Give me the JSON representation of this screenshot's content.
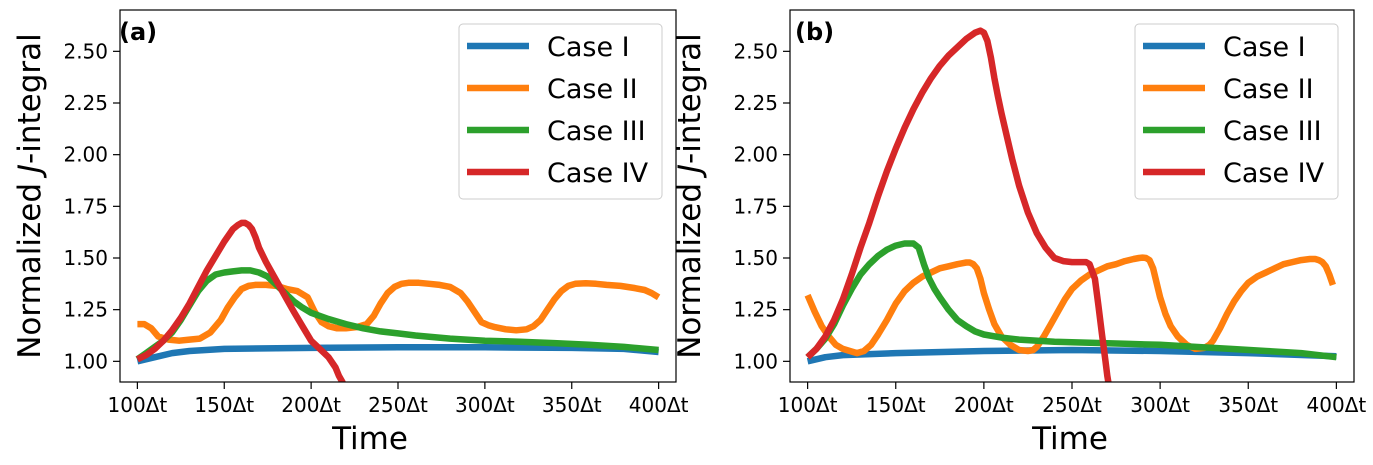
{
  "chart_data": [
    {
      "type": "line",
      "panel_label": "(a)",
      "xlabel": "Time",
      "ylabel_prefix": "Normalized ",
      "ylabel_symbol": "J",
      "ylabel_suffix": "-integral",
      "xlim": [
        90,
        410
      ],
      "ylim": [
        0.9,
        2.7
      ],
      "x_ticks": [
        100,
        150,
        200,
        250,
        300,
        350,
        400
      ],
      "x_tick_labels": [
        "100Δt",
        "150Δt",
        "200Δt",
        "250Δt",
        "300Δt",
        "350Δt",
        "400Δt"
      ],
      "y_ticks": [
        1.0,
        1.25,
        1.5,
        1.75,
        2.0,
        2.25,
        2.5
      ],
      "y_tick_labels": [
        "1.00",
        "1.25",
        "1.50",
        "1.75",
        "2.00",
        "2.25",
        "2.50"
      ],
      "legend_position": "top-right",
      "series": [
        {
          "name": "Case I",
          "color": "#1f77b4",
          "x": [
            100,
            110,
            120,
            130,
            150,
            200,
            250,
            300,
            350,
            380,
            400
          ],
          "y": [
            1.0,
            1.02,
            1.04,
            1.05,
            1.06,
            1.065,
            1.068,
            1.068,
            1.065,
            1.06,
            1.045
          ]
        },
        {
          "name": "Case II",
          "color": "#ff7f0e",
          "x": [
            100,
            104,
            108,
            112,
            118,
            124,
            130,
            136,
            142,
            148,
            152,
            156,
            160,
            164,
            168,
            174,
            180,
            186,
            192,
            198,
            202,
            206,
            210,
            215,
            220,
            226,
            232,
            236,
            240,
            244,
            248,
            252,
            256,
            262,
            268,
            274,
            280,
            286,
            290,
            294,
            298,
            302,
            306,
            312,
            318,
            324,
            328,
            332,
            336,
            340,
            344,
            348,
            352,
            358,
            364,
            370,
            378,
            386,
            392,
            396,
            400
          ],
          "y": [
            1.18,
            1.18,
            1.16,
            1.12,
            1.105,
            1.1,
            1.105,
            1.11,
            1.14,
            1.2,
            1.26,
            1.31,
            1.35,
            1.365,
            1.37,
            1.37,
            1.365,
            1.35,
            1.34,
            1.31,
            1.24,
            1.19,
            1.17,
            1.16,
            1.16,
            1.165,
            1.18,
            1.22,
            1.28,
            1.33,
            1.36,
            1.375,
            1.38,
            1.38,
            1.375,
            1.37,
            1.36,
            1.33,
            1.29,
            1.24,
            1.19,
            1.175,
            1.165,
            1.155,
            1.15,
            1.155,
            1.17,
            1.2,
            1.25,
            1.3,
            1.34,
            1.365,
            1.375,
            1.378,
            1.375,
            1.37,
            1.365,
            1.355,
            1.345,
            1.33,
            1.31
          ]
        },
        {
          "name": "Case III",
          "color": "#2ca02c",
          "x": [
            100,
            105,
            110,
            115,
            120,
            125,
            130,
            135,
            140,
            145,
            150,
            155,
            160,
            165,
            170,
            175,
            180,
            185,
            190,
            195,
            200,
            210,
            220,
            230,
            240,
            250,
            260,
            280,
            300,
            320,
            340,
            360,
            380,
            400
          ],
          "y": [
            1.01,
            1.04,
            1.07,
            1.1,
            1.14,
            1.2,
            1.27,
            1.34,
            1.39,
            1.42,
            1.43,
            1.435,
            1.44,
            1.44,
            1.43,
            1.41,
            1.37,
            1.33,
            1.29,
            1.26,
            1.235,
            1.205,
            1.18,
            1.16,
            1.145,
            1.135,
            1.125,
            1.11,
            1.1,
            1.095,
            1.088,
            1.08,
            1.07,
            1.055
          ]
        },
        {
          "name": "Case IV",
          "color": "#d62728",
          "x": [
            100,
            105,
            110,
            115,
            120,
            125,
            130,
            135,
            140,
            145,
            150,
            155,
            158,
            160,
            162,
            164,
            166,
            168,
            170,
            174,
            178,
            182,
            186,
            190,
            195,
            200,
            205,
            210,
            214,
            216,
            218,
            219
          ],
          "y": [
            1.01,
            1.03,
            1.06,
            1.1,
            1.15,
            1.21,
            1.28,
            1.36,
            1.44,
            1.51,
            1.58,
            1.64,
            1.66,
            1.67,
            1.67,
            1.66,
            1.64,
            1.6,
            1.55,
            1.48,
            1.42,
            1.36,
            1.3,
            1.24,
            1.17,
            1.1,
            1.06,
            1.02,
            0.97,
            0.93,
            0.9,
            0.88
          ]
        }
      ]
    },
    {
      "type": "line",
      "panel_label": "(b)",
      "xlabel": "Time",
      "ylabel_prefix": "Normalized ",
      "ylabel_symbol": "J",
      "ylabel_suffix": "-integral",
      "xlim": [
        90,
        410
      ],
      "ylim": [
        0.9,
        2.7
      ],
      "x_ticks": [
        100,
        150,
        200,
        250,
        300,
        350,
        400
      ],
      "x_tick_labels": [
        "100Δt",
        "150Δt",
        "200Δt",
        "250Δt",
        "300Δt",
        "350Δt",
        "400Δt"
      ],
      "y_ticks": [
        1.0,
        1.25,
        1.5,
        1.75,
        2.0,
        2.25,
        2.5
      ],
      "y_tick_labels": [
        "1.00",
        "1.25",
        "1.50",
        "1.75",
        "2.00",
        "2.25",
        "2.50"
      ],
      "legend_position": "top-right",
      "series": [
        {
          "name": "Case I",
          "color": "#1f77b4",
          "x": [
            100,
            110,
            120,
            150,
            200,
            250,
            300,
            350,
            400
          ],
          "y": [
            1.0,
            1.02,
            1.03,
            1.04,
            1.05,
            1.055,
            1.05,
            1.04,
            1.025
          ]
        },
        {
          "name": "Case II",
          "color": "#ff7f0e",
          "x": [
            100,
            104,
            108,
            112,
            116,
            120,
            124,
            128,
            132,
            136,
            140,
            145,
            150,
            155,
            160,
            165,
            170,
            175,
            180,
            185,
            188,
            190,
            192,
            194,
            196,
            198,
            200,
            203,
            206,
            210,
            215,
            220,
            225,
            228,
            230,
            234,
            238,
            242,
            246,
            250,
            255,
            260,
            265,
            270,
            275,
            280,
            285,
            288,
            290,
            292,
            294,
            296,
            298,
            300,
            303,
            306,
            310,
            315,
            320,
            325,
            328,
            330,
            334,
            338,
            342,
            346,
            350,
            355,
            360,
            365,
            370,
            375,
            380,
            385,
            388,
            390,
            392,
            394,
            396,
            398
          ],
          "y": [
            1.32,
            1.24,
            1.17,
            1.12,
            1.08,
            1.06,
            1.05,
            1.04,
            1.05,
            1.08,
            1.13,
            1.2,
            1.28,
            1.34,
            1.38,
            1.41,
            1.43,
            1.45,
            1.46,
            1.47,
            1.475,
            1.478,
            1.478,
            1.47,
            1.45,
            1.4,
            1.33,
            1.25,
            1.18,
            1.12,
            1.08,
            1.055,
            1.05,
            1.055,
            1.07,
            1.12,
            1.18,
            1.24,
            1.3,
            1.35,
            1.39,
            1.42,
            1.44,
            1.46,
            1.47,
            1.485,
            1.495,
            1.5,
            1.502,
            1.5,
            1.49,
            1.45,
            1.38,
            1.31,
            1.23,
            1.17,
            1.12,
            1.08,
            1.06,
            1.065,
            1.08,
            1.1,
            1.16,
            1.23,
            1.29,
            1.34,
            1.38,
            1.41,
            1.43,
            1.45,
            1.47,
            1.48,
            1.49,
            1.495,
            1.495,
            1.49,
            1.48,
            1.46,
            1.42,
            1.37
          ]
        },
        {
          "name": "Case III",
          "color": "#2ca02c",
          "x": [
            100,
            105,
            110,
            115,
            120,
            125,
            130,
            135,
            140,
            145,
            150,
            155,
            160,
            163,
            166,
            169,
            172,
            175,
            180,
            185,
            190,
            195,
            200,
            210,
            220,
            240,
            260,
            280,
            300,
            320,
            340,
            360,
            380,
            400
          ],
          "y": [
            1.02,
            1.06,
            1.11,
            1.18,
            1.27,
            1.35,
            1.42,
            1.47,
            1.51,
            1.54,
            1.56,
            1.57,
            1.57,
            1.55,
            1.47,
            1.4,
            1.35,
            1.31,
            1.25,
            1.2,
            1.17,
            1.145,
            1.13,
            1.115,
            1.105,
            1.095,
            1.09,
            1.085,
            1.08,
            1.07,
            1.06,
            1.05,
            1.04,
            1.02
          ]
        },
        {
          "name": "Case IV",
          "color": "#d62728",
          "x": [
            100,
            105,
            110,
            115,
            120,
            125,
            130,
            135,
            140,
            145,
            150,
            155,
            160,
            165,
            170,
            175,
            180,
            185,
            190,
            195,
            198,
            200,
            202,
            204,
            206,
            208,
            210,
            213,
            216,
            220,
            225,
            230,
            235,
            240,
            245,
            250,
            255,
            258,
            260,
            263,
            265,
            267,
            269,
            270,
            271
          ],
          "y": [
            1.02,
            1.06,
            1.12,
            1.2,
            1.3,
            1.42,
            1.55,
            1.67,
            1.8,
            1.92,
            2.03,
            2.13,
            2.22,
            2.3,
            2.37,
            2.43,
            2.48,
            2.52,
            2.56,
            2.59,
            2.6,
            2.59,
            2.55,
            2.47,
            2.37,
            2.28,
            2.2,
            2.09,
            1.98,
            1.85,
            1.72,
            1.62,
            1.55,
            1.5,
            1.485,
            1.48,
            1.48,
            1.48,
            1.47,
            1.4,
            1.27,
            1.13,
            1.0,
            0.93,
            0.88
          ]
        }
      ]
    }
  ]
}
